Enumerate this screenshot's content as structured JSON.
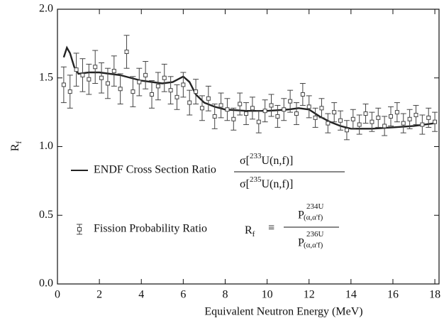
{
  "chart_data": {
    "type": "scatter-line",
    "xlabel": "Equivalent Neutron Energy (MeV)",
    "ylabel": [
      "R",
      "f"
    ],
    "xlim": [
      0,
      18.2
    ],
    "ylim": [
      0,
      2
    ],
    "xticks": [
      0,
      2,
      4,
      6,
      8,
      10,
      12,
      14,
      16,
      18
    ],
    "yticks": [
      {
        "value": 0,
        "label": "0.0"
      },
      {
        "value": 0.5,
        "label": "0.5"
      },
      {
        "value": 1,
        "label": "1.0"
      },
      {
        "value": 1.5,
        "label": "1.5"
      },
      {
        "value": 2,
        "label": "2.0"
      }
    ],
    "series": [
      {
        "name": "ENDF Cross Section Ratio",
        "kind": "line",
        "color": "#222222",
        "x": [
          0.3,
          0.45,
          0.6,
          0.8,
          1.0,
          1.5,
          2,
          3,
          4,
          5,
          5.5,
          6.0,
          6.3,
          6.6,
          7,
          7.5,
          8,
          9,
          10,
          11,
          11.5,
          12,
          12.5,
          13,
          13.5,
          14,
          15,
          16,
          17,
          18
        ],
        "values": [
          1.65,
          1.72,
          1.68,
          1.58,
          1.53,
          1.54,
          1.54,
          1.52,
          1.48,
          1.46,
          1.47,
          1.51,
          1.47,
          1.38,
          1.32,
          1.29,
          1.27,
          1.26,
          1.26,
          1.27,
          1.28,
          1.27,
          1.22,
          1.18,
          1.15,
          1.13,
          1.13,
          1.14,
          1.15,
          1.17
        ]
      },
      {
        "name": "Fission Probability Ratio",
        "kind": "points",
        "color": "#444444",
        "x": [
          0.3,
          0.6,
          0.9,
          1.2,
          1.5,
          1.8,
          2.1,
          2.4,
          2.7,
          3.0,
          3.3,
          3.6,
          3.9,
          4.2,
          4.5,
          4.8,
          5.1,
          5.4,
          5.7,
          6.0,
          6.3,
          6.6,
          6.9,
          7.2,
          7.5,
          7.8,
          8.1,
          8.4,
          8.7,
          9.0,
          9.3,
          9.6,
          9.9,
          10.2,
          10.5,
          10.8,
          11.1,
          11.4,
          11.7,
          12.0,
          12.3,
          12.6,
          12.9,
          13.2,
          13.5,
          13.8,
          14.1,
          14.4,
          14.7,
          15.0,
          15.3,
          15.6,
          15.9,
          16.2,
          16.5,
          16.8,
          17.1,
          17.4,
          17.7,
          18.0
        ],
        "values": [
          1.45,
          1.4,
          1.56,
          1.52,
          1.49,
          1.58,
          1.5,
          1.46,
          1.55,
          1.42,
          1.69,
          1.4,
          1.47,
          1.52,
          1.38,
          1.44,
          1.5,
          1.41,
          1.36,
          1.45,
          1.32,
          1.4,
          1.28,
          1.35,
          1.22,
          1.3,
          1.27,
          1.2,
          1.31,
          1.24,
          1.28,
          1.18,
          1.26,
          1.3,
          1.22,
          1.27,
          1.33,
          1.24,
          1.38,
          1.29,
          1.21,
          1.28,
          1.17,
          1.25,
          1.19,
          1.12,
          1.2,
          1.16,
          1.24,
          1.18,
          1.21,
          1.15,
          1.22,
          1.25,
          1.17,
          1.2,
          1.23,
          1.16,
          1.21,
          1.18
        ],
        "errors": [
          0.13,
          0.12,
          0.12,
          0.12,
          0.11,
          0.12,
          0.11,
          0.11,
          0.11,
          0.11,
          0.12,
          0.11,
          0.1,
          0.1,
          0.1,
          0.1,
          0.1,
          0.1,
          0.09,
          0.09,
          0.09,
          0.09,
          0.09,
          0.09,
          0.09,
          0.09,
          0.08,
          0.08,
          0.08,
          0.08,
          0.08,
          0.08,
          0.08,
          0.08,
          0.08,
          0.08,
          0.08,
          0.08,
          0.08,
          0.08,
          0.07,
          0.07,
          0.07,
          0.07,
          0.07,
          0.07,
          0.07,
          0.07,
          0.07,
          0.07,
          0.07,
          0.07,
          0.07,
          0.07,
          0.07,
          0.07,
          0.07,
          0.07,
          0.07,
          0.07
        ]
      }
    ],
    "formulas": {
      "cross_section": {
        "numerator": [
          "σ[",
          "233",
          "U(n,f)]"
        ],
        "denominator": [
          "σ[",
          "235",
          "U(n,f)]"
        ]
      },
      "fission": {
        "lhs": [
          "R",
          "f"
        ],
        "symbol": "≡",
        "numerator": [
          "P",
          "234",
          "U",
          "(α,α'f)"
        ],
        "denominator": [
          "P",
          "236",
          "U",
          "(α,α'f)"
        ]
      }
    }
  }
}
